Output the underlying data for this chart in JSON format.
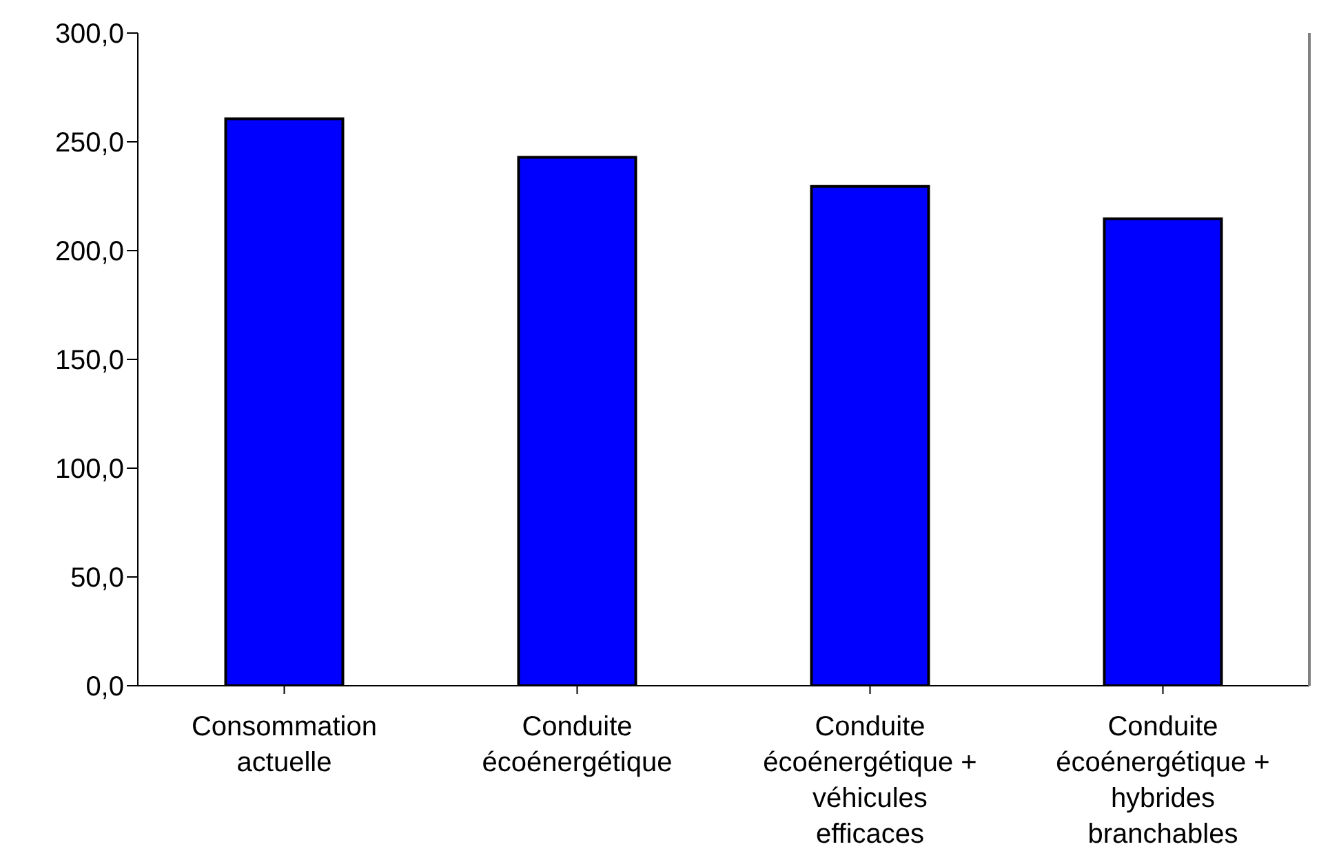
{
  "chart_data": {
    "type": "bar",
    "categories": [
      "Consommation actuelle",
      "Conduite écoénergétique",
      "Conduite écoénergétique + véhicules efficaces",
      "Conduite écoénergétique + hybrides branchables"
    ],
    "values": [
      260.6,
      242.9,
      229.5,
      214.6
    ],
    "color": "#0000ff",
    "ylim": [
      0,
      300
    ],
    "yticks": [
      {
        "value": 0,
        "label": "0,0"
      },
      {
        "value": 50,
        "label": "50,0"
      },
      {
        "value": 100,
        "label": "100,0"
      },
      {
        "value": 150,
        "label": "150,0"
      },
      {
        "value": 200,
        "label": "200,0"
      },
      {
        "value": 250,
        "label": "250,0"
      },
      {
        "value": 300,
        "label": "300,0"
      }
    ],
    "grid": false,
    "legend": false
  }
}
